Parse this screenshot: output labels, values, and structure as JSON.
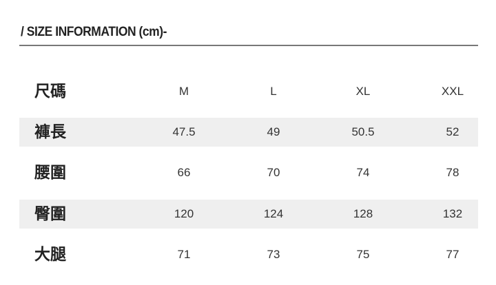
{
  "title": "/ SIZE INFORMATION (cm)-",
  "table": {
    "header": {
      "label": "尺碼",
      "cells": [
        "M",
        "L",
        "XL",
        "XXL"
      ]
    },
    "rows": [
      {
        "label": "褲長",
        "cells": [
          "47.5",
          "49",
          "50.5",
          "52"
        ]
      },
      {
        "label": "腰圍",
        "cells": [
          "66",
          "70",
          "74",
          "78"
        ]
      },
      {
        "label": "臀圍",
        "cells": [
          "120",
          "124",
          "128",
          "132"
        ]
      },
      {
        "label": "大腿",
        "cells": [
          "71",
          "73",
          "75",
          "77"
        ]
      }
    ]
  },
  "colors": {
    "row_shade": "#efefef",
    "rule": "#777777"
  }
}
